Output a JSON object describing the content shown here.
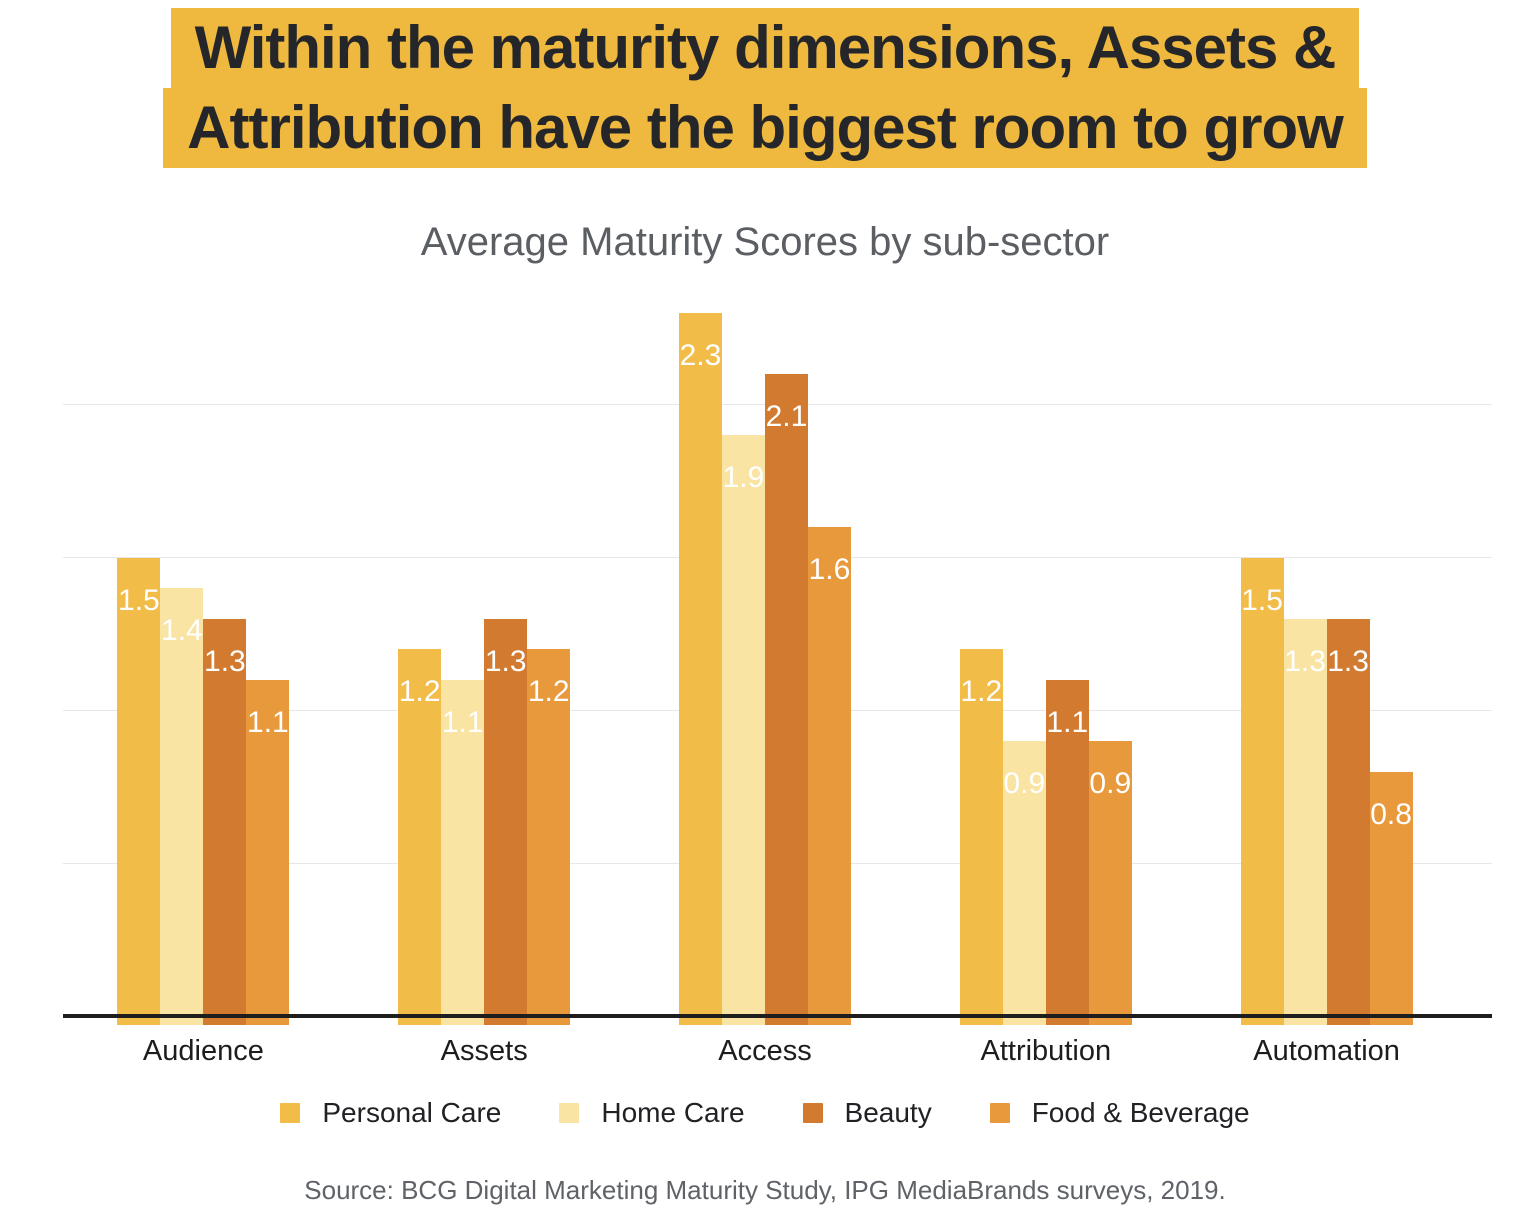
{
  "title": {
    "line1": "Within the maturity dimensions, Assets &",
    "line2": "Attribution have the biggest room to grow",
    "highlight_color": "#EFB83F",
    "text_color": "#25262A"
  },
  "chart_data": {
    "type": "bar",
    "title": "Average Maturity Scores by sub-sector",
    "categories": [
      "Audience",
      "Assets",
      "Access",
      "Attribution",
      "Automation"
    ],
    "series": [
      {
        "name": "Personal Care",
        "color": "#F2BC48",
        "values": [
          1.5,
          1.2,
          2.3,
          1.2,
          1.5
        ]
      },
      {
        "name": "Home Care",
        "color": "#F9E4A4",
        "values": [
          1.4,
          1.1,
          1.9,
          0.9,
          1.3
        ]
      },
      {
        "name": "Beauty",
        "color": "#D17A30",
        "values": [
          1.3,
          1.3,
          2.1,
          1.1,
          1.3
        ]
      },
      {
        "name": "Food & Beverage",
        "color": "#E8993C",
        "values": [
          1.1,
          1.2,
          1.6,
          0.9,
          0.8
        ]
      }
    ],
    "ylim": [
      0,
      2.5
    ],
    "gridlines": [
      0.5,
      1.0,
      1.5,
      2.0
    ],
    "grid": true,
    "legend_position": "bottom",
    "value_labels": true,
    "value_label_color": "#ffffff",
    "axis_color": "#1E1E1E",
    "gridline_color": "#E7E7E7"
  },
  "source": "Source: BCG Digital Marketing Maturity Study, IPG MediaBrands surveys, 2019."
}
